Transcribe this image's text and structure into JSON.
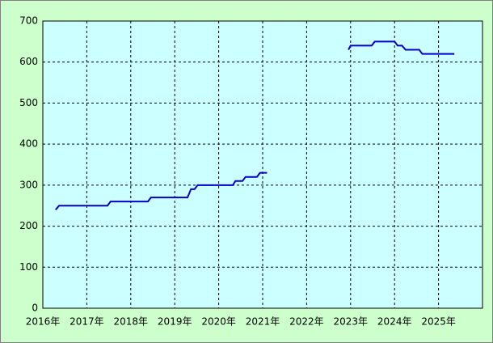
{
  "chart_data": {
    "type": "line",
    "color": "#0000cc",
    "grid": true,
    "x": [
      2016.29,
      2016.37,
      2017.47,
      2017.54,
      2018.39,
      2018.46,
      2019.29,
      2019.37,
      2019.45,
      2019.52,
      2020.32,
      2020.38,
      2020.54,
      2020.61,
      2020.87,
      2020.94,
      2021.1,
      null,
      2022.95,
      2023.0,
      2023.48,
      2023.55,
      2024.0,
      2024.07,
      2024.17,
      2024.25,
      2024.56,
      2024.63,
      2025.36
    ],
    "values": [
      240,
      250,
      250,
      260,
      260,
      270,
      270,
      290,
      290,
      300,
      300,
      310,
      310,
      320,
      320,
      330,
      330,
      null,
      630,
      640,
      640,
      650,
      650,
      640,
      640,
      630,
      630,
      620,
      620
    ],
    "xlim": [
      2016,
      2026
    ],
    "xticks": [
      {
        "value": 2016,
        "label": "2016年"
      },
      {
        "value": 2017,
        "label": "2017年"
      },
      {
        "value": 2018,
        "label": "2018年"
      },
      {
        "value": 2019,
        "label": "2019年"
      },
      {
        "value": 2020,
        "label": "2020年"
      },
      {
        "value": 2021,
        "label": "2021年"
      },
      {
        "value": 2022,
        "label": "2022年"
      },
      {
        "value": 2023,
        "label": "2023年"
      },
      {
        "value": 2024,
        "label": "2024年"
      },
      {
        "value": 2025,
        "label": "2025年"
      }
    ],
    "ylim": [
      0,
      700
    ],
    "yticks": [
      0,
      100,
      200,
      300,
      400,
      500,
      600,
      700
    ]
  }
}
